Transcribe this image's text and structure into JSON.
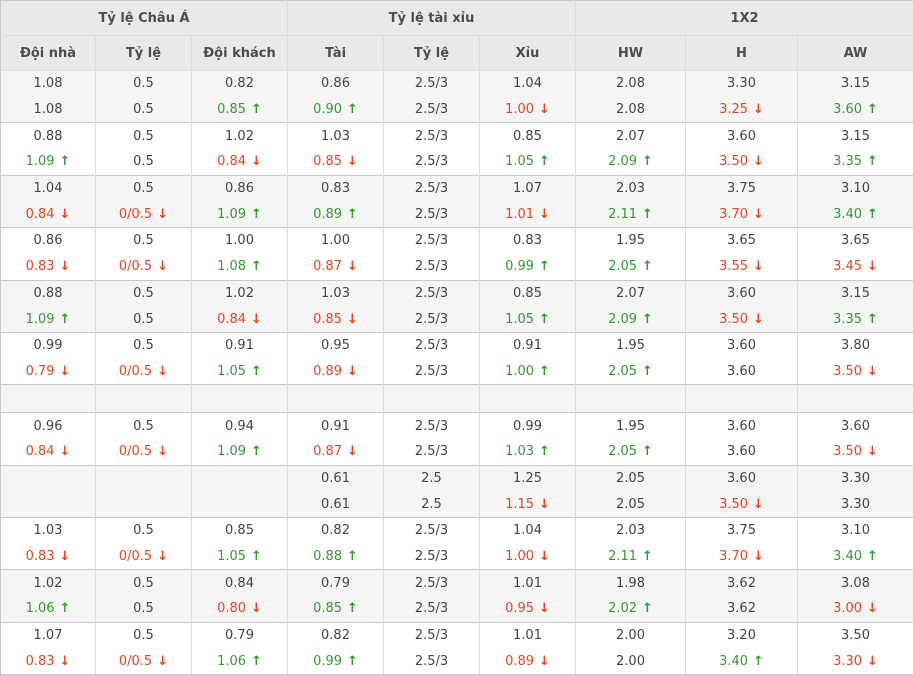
{
  "colors": {
    "up_green": "#339933",
    "down_red": "#e8431f",
    "header_bg": "#e9e9e9",
    "shaded_row_bg": "#f5f5f5"
  },
  "icons": {
    "up_arrow": "↑",
    "down_arrow": "↓"
  },
  "header": {
    "groups": [
      {
        "label": "Tỷ lệ Châu Á"
      },
      {
        "label": "Tỷ lệ tài xỉu"
      },
      {
        "label": "1X2"
      }
    ],
    "columns": [
      "Đội nhà",
      "Tỷ lệ",
      "Đội khách",
      "Tài",
      "Tỷ lệ",
      "Xỉu",
      "HW",
      "H",
      "AW"
    ]
  },
  "rows": [
    {
      "shaded": true,
      "lines": [
        [
          {
            "v": "1.08"
          },
          {
            "v": "0.5"
          },
          {
            "v": "0.82"
          },
          {
            "v": "0.86"
          },
          {
            "v": "2.5/3"
          },
          {
            "v": "1.04"
          },
          {
            "v": "2.08"
          },
          {
            "v": "3.30"
          },
          {
            "v": "3.15"
          }
        ],
        [
          {
            "v": "1.08"
          },
          {
            "v": "0.5"
          },
          {
            "v": "0.85",
            "d": "up"
          },
          {
            "v": "0.90",
            "d": "up"
          },
          {
            "v": "2.5/3"
          },
          {
            "v": "1.00",
            "d": "down"
          },
          {
            "v": "2.08"
          },
          {
            "v": "3.25",
            "d": "down"
          },
          {
            "v": "3.60",
            "d": "up"
          }
        ]
      ]
    },
    {
      "shaded": false,
      "lines": [
        [
          {
            "v": "0.88"
          },
          {
            "v": "0.5"
          },
          {
            "v": "1.02"
          },
          {
            "v": "1.03"
          },
          {
            "v": "2.5/3"
          },
          {
            "v": "0.85"
          },
          {
            "v": "2.07"
          },
          {
            "v": "3.60"
          },
          {
            "v": "3.15"
          }
        ],
        [
          {
            "v": "1.09",
            "d": "up"
          },
          {
            "v": "0.5"
          },
          {
            "v": "0.84",
            "d": "down"
          },
          {
            "v": "0.85",
            "d": "down"
          },
          {
            "v": "2.5/3"
          },
          {
            "v": "1.05",
            "d": "up"
          },
          {
            "v": "2.09",
            "d": "up"
          },
          {
            "v": "3.50",
            "d": "down"
          },
          {
            "v": "3.35",
            "d": "up"
          }
        ]
      ]
    },
    {
      "shaded": true,
      "lines": [
        [
          {
            "v": "1.04"
          },
          {
            "v": "0.5"
          },
          {
            "v": "0.86"
          },
          {
            "v": "0.83"
          },
          {
            "v": "2.5/3"
          },
          {
            "v": "1.07"
          },
          {
            "v": "2.03"
          },
          {
            "v": "3.75"
          },
          {
            "v": "3.10"
          }
        ],
        [
          {
            "v": "0.84",
            "d": "down"
          },
          {
            "v": "0/0.5",
            "d": "down"
          },
          {
            "v": "1.09",
            "d": "up"
          },
          {
            "v": "0.89",
            "d": "up"
          },
          {
            "v": "2.5/3"
          },
          {
            "v": "1.01",
            "d": "down"
          },
          {
            "v": "2.11",
            "d": "up"
          },
          {
            "v": "3.70",
            "d": "down"
          },
          {
            "v": "3.40",
            "d": "up"
          }
        ]
      ]
    },
    {
      "shaded": false,
      "lines": [
        [
          {
            "v": "0.86"
          },
          {
            "v": "0.5"
          },
          {
            "v": "1.00"
          },
          {
            "v": "1.00"
          },
          {
            "v": "2.5/3"
          },
          {
            "v": "0.83"
          },
          {
            "v": "1.95"
          },
          {
            "v": "3.65"
          },
          {
            "v": "3.65"
          }
        ],
        [
          {
            "v": "0.83",
            "d": "down"
          },
          {
            "v": "0/0.5",
            "d": "down"
          },
          {
            "v": "1.08",
            "d": "up"
          },
          {
            "v": "0.87",
            "d": "down"
          },
          {
            "v": "2.5/3"
          },
          {
            "v": "0.99",
            "d": "up"
          },
          {
            "v": "2.05",
            "d": "up"
          },
          {
            "v": "3.55",
            "d": "down"
          },
          {
            "v": "3.45",
            "d": "down"
          }
        ]
      ]
    },
    {
      "shaded": true,
      "lines": [
        [
          {
            "v": "0.88"
          },
          {
            "v": "0.5"
          },
          {
            "v": "1.02"
          },
          {
            "v": "1.03"
          },
          {
            "v": "2.5/3"
          },
          {
            "v": "0.85"
          },
          {
            "v": "2.07"
          },
          {
            "v": "3.60"
          },
          {
            "v": "3.15"
          }
        ],
        [
          {
            "v": "1.09",
            "d": "up"
          },
          {
            "v": "0.5"
          },
          {
            "v": "0.84",
            "d": "down"
          },
          {
            "v": "0.85",
            "d": "down"
          },
          {
            "v": "2.5/3"
          },
          {
            "v": "1.05",
            "d": "up"
          },
          {
            "v": "2.09",
            "d": "up"
          },
          {
            "v": "3.50",
            "d": "down"
          },
          {
            "v": "3.35",
            "d": "up"
          }
        ]
      ]
    },
    {
      "shaded": false,
      "lines": [
        [
          {
            "v": "0.99"
          },
          {
            "v": "0.5"
          },
          {
            "v": "0.91"
          },
          {
            "v": "0.95"
          },
          {
            "v": "2.5/3"
          },
          {
            "v": "0.91"
          },
          {
            "v": "1.95"
          },
          {
            "v": "3.60"
          },
          {
            "v": "3.80"
          }
        ],
        [
          {
            "v": "0.79",
            "d": "down"
          },
          {
            "v": "0/0.5",
            "d": "down"
          },
          {
            "v": "1.05",
            "d": "up"
          },
          {
            "v": "0.89",
            "d": "down"
          },
          {
            "v": "2.5/3"
          },
          {
            "v": "1.00",
            "d": "up"
          },
          {
            "v": "2.05",
            "d": "up"
          },
          {
            "v": "3.60"
          },
          {
            "v": "3.50",
            "d": "down"
          }
        ]
      ]
    },
    {
      "shaded": true,
      "empty": true
    },
    {
      "shaded": false,
      "lines": [
        [
          {
            "v": "0.96"
          },
          {
            "v": "0.5"
          },
          {
            "v": "0.94"
          },
          {
            "v": "0.91"
          },
          {
            "v": "2.5/3"
          },
          {
            "v": "0.99"
          },
          {
            "v": "1.95"
          },
          {
            "v": "3.60"
          },
          {
            "v": "3.60"
          }
        ],
        [
          {
            "v": "0.84",
            "d": "down"
          },
          {
            "v": "0/0.5",
            "d": "down"
          },
          {
            "v": "1.09",
            "d": "up"
          },
          {
            "v": "0.87",
            "d": "down"
          },
          {
            "v": "2.5/3"
          },
          {
            "v": "1.03",
            "d": "up"
          },
          {
            "v": "2.05",
            "d": "up"
          },
          {
            "v": "3.60"
          },
          {
            "v": "3.50",
            "d": "down"
          }
        ]
      ]
    },
    {
      "shaded": true,
      "lines": [
        [
          {
            "v": ""
          },
          {
            "v": ""
          },
          {
            "v": ""
          },
          {
            "v": "0.61"
          },
          {
            "v": "2.5"
          },
          {
            "v": "1.25"
          },
          {
            "v": "2.05"
          },
          {
            "v": "3.60"
          },
          {
            "v": "3.30"
          }
        ],
        [
          {
            "v": ""
          },
          {
            "v": ""
          },
          {
            "v": ""
          },
          {
            "v": "0.61"
          },
          {
            "v": "2.5"
          },
          {
            "v": "1.15",
            "d": "down"
          },
          {
            "v": "2.05"
          },
          {
            "v": "3.50",
            "d": "down"
          },
          {
            "v": "3.30"
          }
        ]
      ]
    },
    {
      "shaded": false,
      "lines": [
        [
          {
            "v": "1.03"
          },
          {
            "v": "0.5"
          },
          {
            "v": "0.85"
          },
          {
            "v": "0.82"
          },
          {
            "v": "2.5/3"
          },
          {
            "v": "1.04"
          },
          {
            "v": "2.03"
          },
          {
            "v": "3.75"
          },
          {
            "v": "3.10"
          }
        ],
        [
          {
            "v": "0.83",
            "d": "down"
          },
          {
            "v": "0/0.5",
            "d": "down"
          },
          {
            "v": "1.05",
            "d": "up"
          },
          {
            "v": "0.88",
            "d": "up"
          },
          {
            "v": "2.5/3"
          },
          {
            "v": "1.00",
            "d": "down"
          },
          {
            "v": "2.11",
            "d": "up"
          },
          {
            "v": "3.70",
            "d": "down"
          },
          {
            "v": "3.40",
            "d": "up"
          }
        ]
      ]
    },
    {
      "shaded": true,
      "lines": [
        [
          {
            "v": "1.02"
          },
          {
            "v": "0.5"
          },
          {
            "v": "0.84"
          },
          {
            "v": "0.79"
          },
          {
            "v": "2.5/3"
          },
          {
            "v": "1.01"
          },
          {
            "v": "1.98"
          },
          {
            "v": "3.62"
          },
          {
            "v": "3.08"
          }
        ],
        [
          {
            "v": "1.06",
            "d": "up"
          },
          {
            "v": "0.5"
          },
          {
            "v": "0.80",
            "d": "down"
          },
          {
            "v": "0.85",
            "d": "up"
          },
          {
            "v": "2.5/3"
          },
          {
            "v": "0.95",
            "d": "down"
          },
          {
            "v": "2.02",
            "d": "up"
          },
          {
            "v": "3.62"
          },
          {
            "v": "3.00",
            "d": "down"
          }
        ]
      ]
    },
    {
      "shaded": false,
      "lines": [
        [
          {
            "v": "1.07"
          },
          {
            "v": "0.5"
          },
          {
            "v": "0.79"
          },
          {
            "v": "0.82"
          },
          {
            "v": "2.5/3"
          },
          {
            "v": "1.01"
          },
          {
            "v": "2.00"
          },
          {
            "v": "3.20"
          },
          {
            "v": "3.50"
          }
        ],
        [
          {
            "v": "0.83",
            "d": "down"
          },
          {
            "v": "0/0.5",
            "d": "down"
          },
          {
            "v": "1.06",
            "d": "up"
          },
          {
            "v": "0.99",
            "d": "up"
          },
          {
            "v": "2.5/3"
          },
          {
            "v": "0.89",
            "d": "down"
          },
          {
            "v": "2.00"
          },
          {
            "v": "3.40",
            "d": "up"
          },
          {
            "v": "3.30",
            "d": "down"
          }
        ]
      ]
    }
  ]
}
